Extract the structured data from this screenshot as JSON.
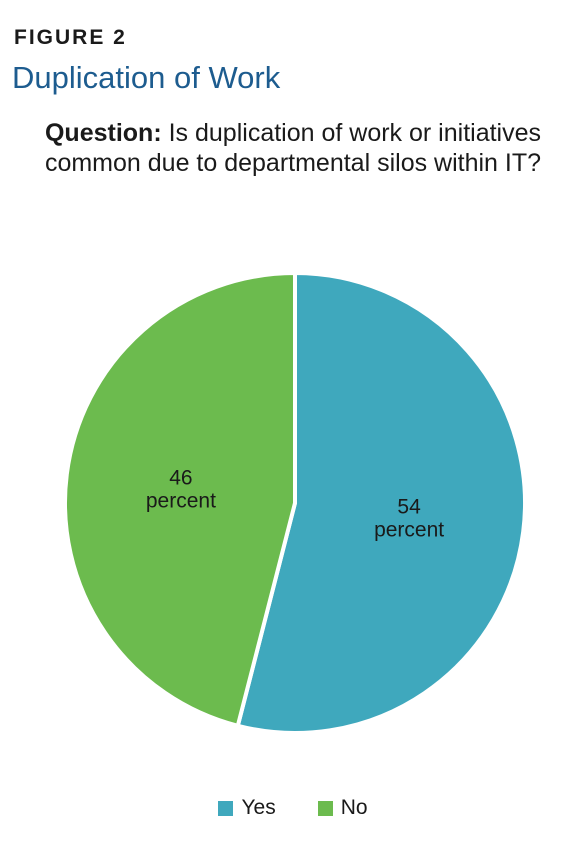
{
  "figure": {
    "label": "FIGURE 2",
    "title": "Duplication of Work"
  },
  "question": {
    "lead": "Question:",
    "text": "Is duplication of work or initiatives common due to departmental silos within IT?"
  },
  "chart_data": {
    "type": "pie",
    "title": "",
    "slices": [
      {
        "label": "Yes",
        "value": 54,
        "value_text": "54",
        "unit_text": "percent",
        "color": "#3fa8bd"
      },
      {
        "label": "No",
        "value": 46,
        "value_text": "46",
        "unit_text": "percent",
        "color": "#6cbb4e"
      }
    ],
    "legend": {
      "position": "bottom",
      "entries": [
        "Yes",
        "No"
      ]
    }
  }
}
